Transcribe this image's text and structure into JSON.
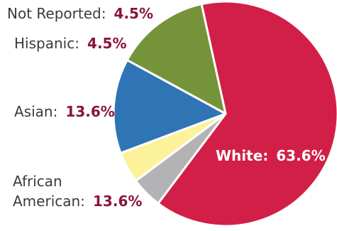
{
  "chart_data": {
    "type": "pie",
    "title": "",
    "slices": [
      {
        "label": "White:",
        "value_label": "63.6%",
        "value": 63.6,
        "color": "#d21f47"
      },
      {
        "label": "African American:",
        "value_label": "13.6%",
        "value": 13.6,
        "color": "#759439"
      },
      {
        "label": "Asian:",
        "value_label": "13.6%",
        "value": 13.6,
        "color": "#2f74b5"
      },
      {
        "label": "Hispanic:",
        "value_label": "4.5%",
        "value": 4.5,
        "color": "#fbf29a"
      },
      {
        "label": "Not Reported:",
        "value_label": "4.5%",
        "value": 4.5,
        "color": "#b3b3b6"
      }
    ],
    "label_colors": {
      "name": "#3b3b3b",
      "value": "#8a1538",
      "inside": "#ffffff"
    }
  }
}
